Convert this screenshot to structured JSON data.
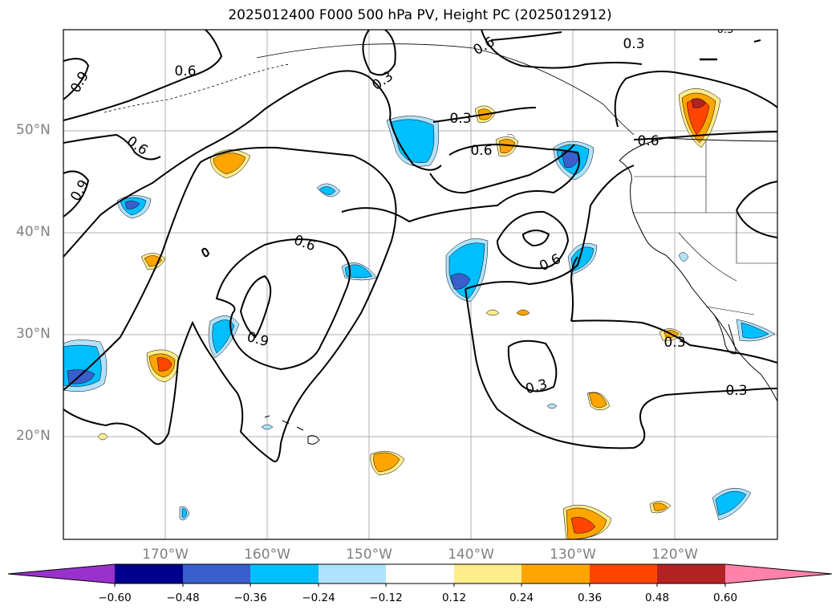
{
  "title": "2025012400 F000 500 hPa PV, Height PC (2025012912)",
  "lat_labels": [
    "50°N",
    "40°N",
    "30°N",
    "20°N"
  ],
  "lon_labels": [
    "170°W",
    "160°W",
    "150°W",
    "140°W",
    "130°W",
    "120°W"
  ],
  "contour_labels": [
    "0.9",
    "0.6",
    "0.3",
    "0.3",
    "0.6",
    "0.6",
    "0.6",
    "0.9",
    "0.6",
    "0.9",
    "0.3",
    "0.3",
    "0.3",
    "0.6",
    "0.3",
    "0.6",
    "0.3"
  ],
  "colorbar": {
    "tick_labels": [
      "−0.60",
      "−0.48",
      "−0.36",
      "−0.24",
      "−0.12",
      "0.12",
      "0.24",
      "0.36",
      "0.48",
      "0.60"
    ],
    "colors": [
      "#9932cc",
      "#00008b",
      "#3a5fcd",
      "#00bfff",
      "#b0e2ff",
      "#ffffff",
      "#ffec8b",
      "#ffa500",
      "#ff4500",
      "#b22222",
      "#ff82ab"
    ]
  },
  "palette": {
    "neg_light": "#b0e2ff",
    "neg_mid": "#00bfff",
    "neg_strong": "#3a5fcd",
    "pos_light": "#ffec8b",
    "pos_mid": "#ffa500",
    "pos_strong": "#ff4500",
    "contour": "#000000",
    "grid": "#b0b0b0",
    "axis_label": "#808080"
  }
}
